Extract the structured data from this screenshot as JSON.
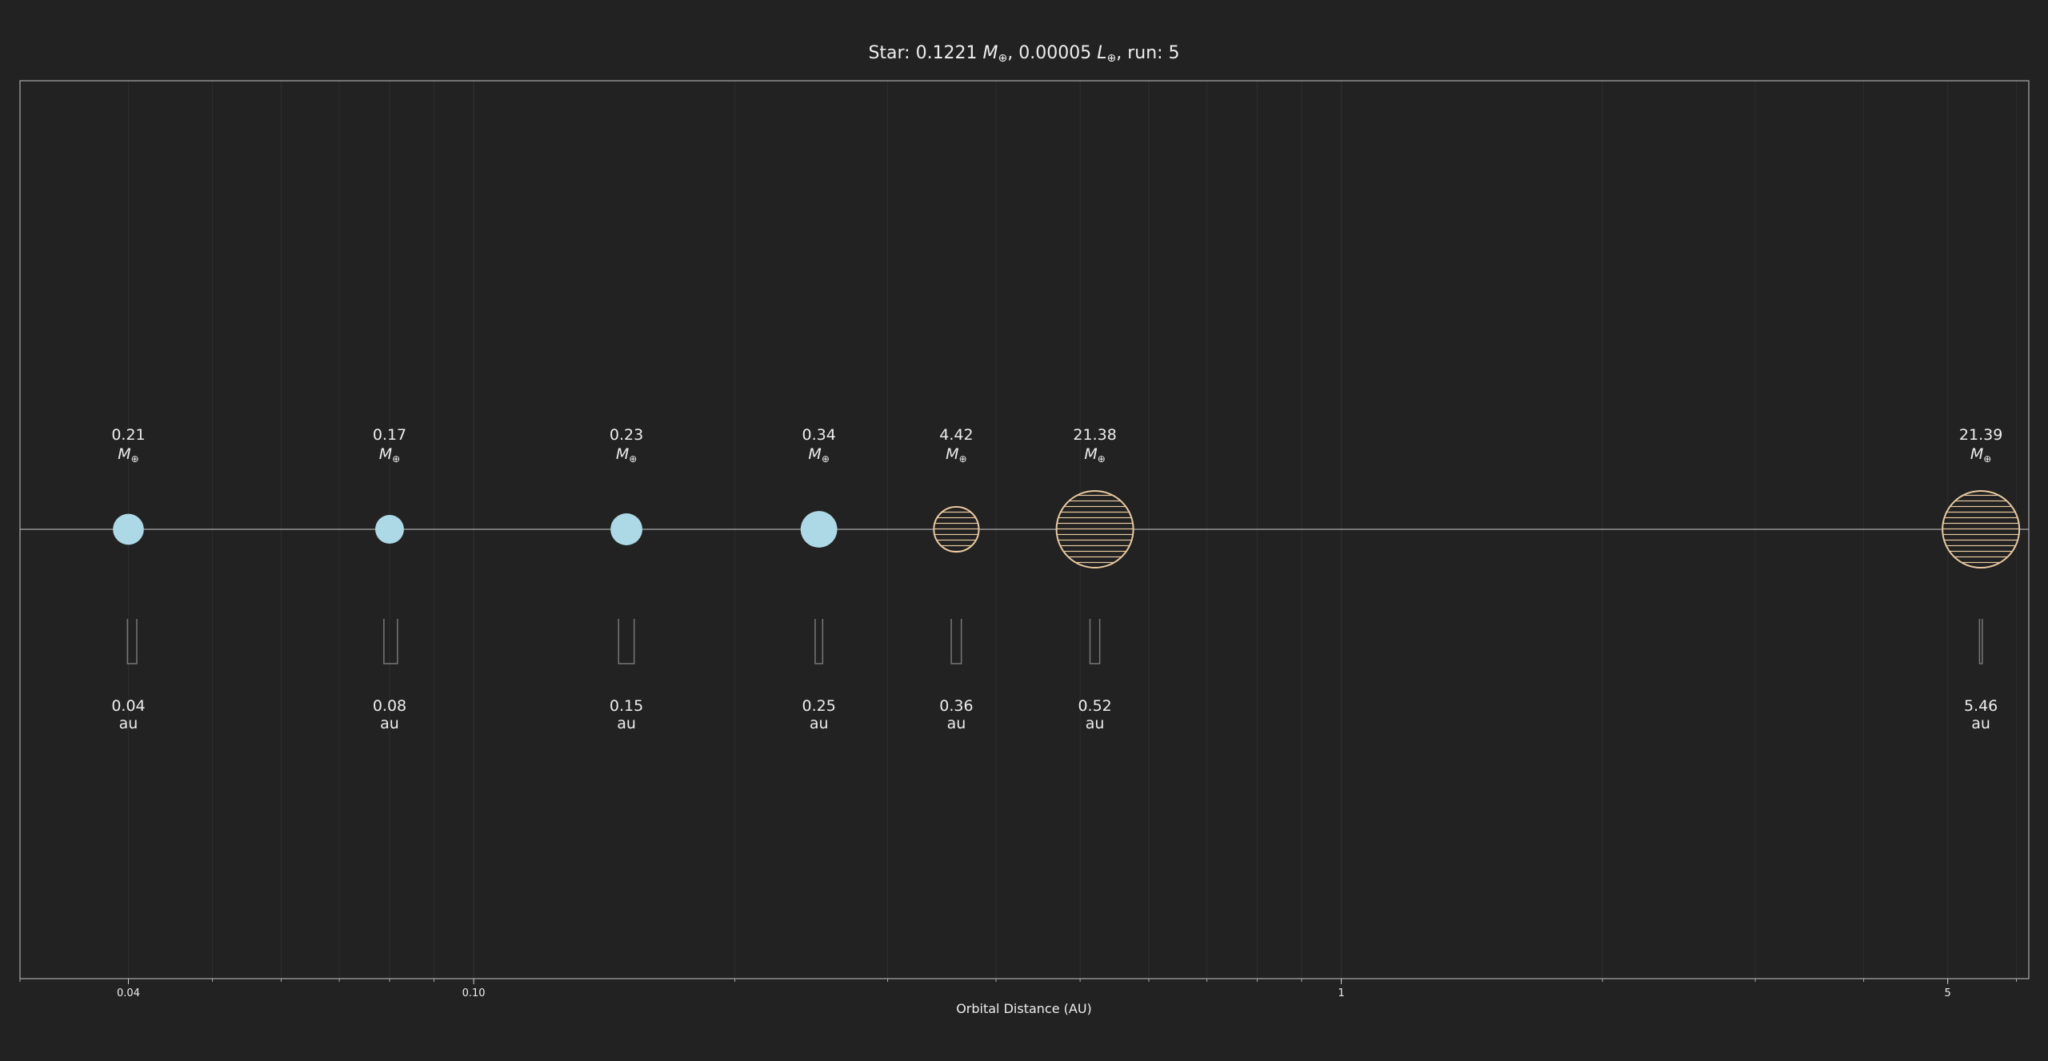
{
  "colors": {
    "background": "#222222",
    "frame": "#aaaaaa",
    "text": "#eeeeee",
    "rocky_planet": "#add8e6",
    "gas_planet": "#e8c9a0",
    "range_marker": "#777777",
    "grid": "#2e2e2e"
  },
  "chart_data": {
    "type": "scatter",
    "title": {
      "prefix": "Star: 0.1221 ",
      "mass_symbol": "M",
      "mass_sub": "⊕",
      "middle": ", 0.00005 ",
      "lum_symbol": "L",
      "lum_sub": "⊕",
      "suffix": ", run: 5"
    },
    "xlabel": "Orbital Distance (AU)",
    "xscale": "log",
    "xlim": [
      0.03,
      6.2
    ],
    "xticks": [
      {
        "value": 0.04,
        "label": "0.04"
      },
      {
        "value": 0.1,
        "label": "0.10"
      },
      {
        "value": 1,
        "label": "1"
      },
      {
        "value": 5,
        "label": "5"
      }
    ],
    "grid": true,
    "mass_unit_symbol": "M",
    "mass_unit_sub": "⊕",
    "distance_unit": "au",
    "planets": [
      {
        "distance": 0.04,
        "distance_label": "0.04",
        "mass": 0.21,
        "mass_label": "0.21",
        "kind": "rocky",
        "range": [
          0.0399,
          0.0409
        ]
      },
      {
        "distance": 0.08,
        "distance_label": "0.08",
        "mass": 0.17,
        "mass_label": "0.17",
        "kind": "rocky",
        "range": [
          0.0788,
          0.0817
        ]
      },
      {
        "distance": 0.15,
        "distance_label": "0.15",
        "mass": 0.23,
        "mass_label": "0.23",
        "kind": "rocky",
        "range": [
          0.1469,
          0.1531
        ]
      },
      {
        "distance": 0.25,
        "distance_label": "0.25",
        "mass": 0.34,
        "mass_label": "0.34",
        "kind": "rocky",
        "range": [
          0.2475,
          0.2525
        ]
      },
      {
        "distance": 0.36,
        "distance_label": "0.36",
        "mass": 4.42,
        "mass_label": "4.42",
        "kind": "gas",
        "range": [
          0.3552,
          0.3648
        ]
      },
      {
        "distance": 0.52,
        "distance_label": "0.52",
        "mass": 21.38,
        "mass_label": "21.38",
        "kind": "gas",
        "range": [
          0.5133,
          0.5267
        ]
      },
      {
        "distance": 5.46,
        "distance_label": "5.46",
        "mass": 21.39,
        "mass_label": "21.39",
        "kind": "gas",
        "range": [
          5.44,
          5.48
        ]
      }
    ]
  }
}
